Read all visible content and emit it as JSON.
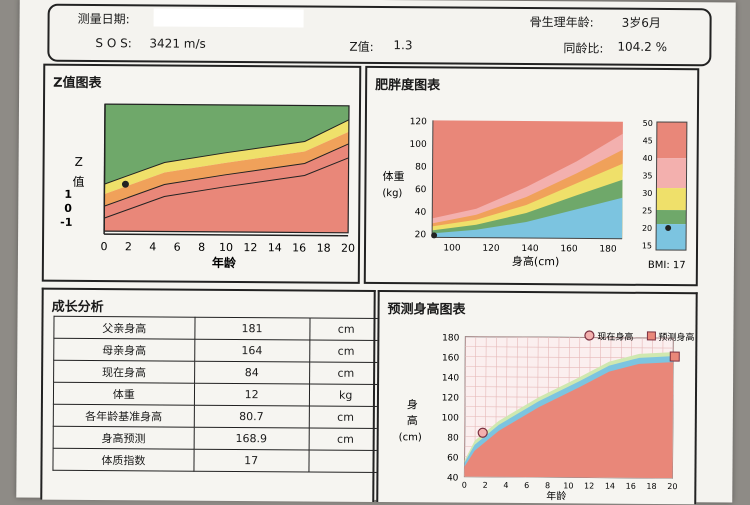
{
  "header": {
    "date_label": "测量日期:",
    "bone_age_label": "骨生理年龄:",
    "bone_age_value": "3岁6月",
    "sos_label": "S O S:",
    "sos_value": "3421 m/s",
    "z_label": "Z值:",
    "z_value": "1.3",
    "peer_label": "同龄比:",
    "peer_value": "104.2 %"
  },
  "z_chart": {
    "title": "Z值图表",
    "ylabel": "Z\n值",
    "y_ticks": [
      "1",
      "0",
      "-1"
    ],
    "x_ticks": [
      "0",
      "2",
      "4",
      "6",
      "8",
      "10",
      "12",
      "14",
      "16",
      "18",
      "20"
    ],
    "xlabel": "年龄",
    "marker": {
      "age": 1.3,
      "z": 1.3
    }
  },
  "obesity_chart": {
    "title": "肥胖度图表",
    "ylabel": "体重\n(kg)",
    "xlabel": "身高(cm)",
    "y_ticks": [
      "120",
      "100",
      "80",
      "60",
      "40",
      "20"
    ],
    "x_ticks": [
      "100",
      "120",
      "140",
      "160",
      "180"
    ],
    "bmi_ticks": [
      "50",
      "45",
      "40",
      "35",
      "30",
      "25",
      "20",
      "15"
    ],
    "bmi_label": "BMI: 17",
    "marker": {
      "height": 84,
      "weight": 12
    },
    "bmi_value": 17
  },
  "growth_analysis": {
    "title": "成长分析",
    "rows": [
      {
        "label": "父亲身高",
        "value": "181",
        "unit": "cm"
      },
      {
        "label": "母亲身高",
        "value": "164",
        "unit": "cm"
      },
      {
        "label": "现在身高",
        "value": "84",
        "unit": "cm"
      },
      {
        "label": "体重",
        "value": "12",
        "unit": "kg"
      },
      {
        "label": "各年龄基准身高",
        "value": "80.7",
        "unit": "cm"
      },
      {
        "label": "身高预测",
        "value": "168.9",
        "unit": "cm"
      },
      {
        "label": "体质指数",
        "value": "17",
        "unit": ""
      }
    ]
  },
  "height_chart": {
    "title": "预测身高图表",
    "ylabel": "身\n高\n(cm)",
    "xlabel": "年龄",
    "y_ticks": [
      "180",
      "160",
      "140",
      "120",
      "100",
      "80",
      "60",
      "40"
    ],
    "x_ticks": [
      "0",
      "2",
      "4",
      "6",
      "8",
      "10",
      "12",
      "14",
      "16",
      "18",
      "20"
    ],
    "legend_current": "现在身高",
    "legend_predicted": "预测身高",
    "current": {
      "age": 1.3,
      "height": 84
    },
    "predicted": {
      "age": 20,
      "height": 168.9
    }
  },
  "colors": {
    "green": "#6fa86a",
    "yellow": "#efe06a",
    "orange": "#f0a15a",
    "red": "#e98779",
    "blue": "#7cc4e0",
    "pink": "#f3b0ae"
  }
}
